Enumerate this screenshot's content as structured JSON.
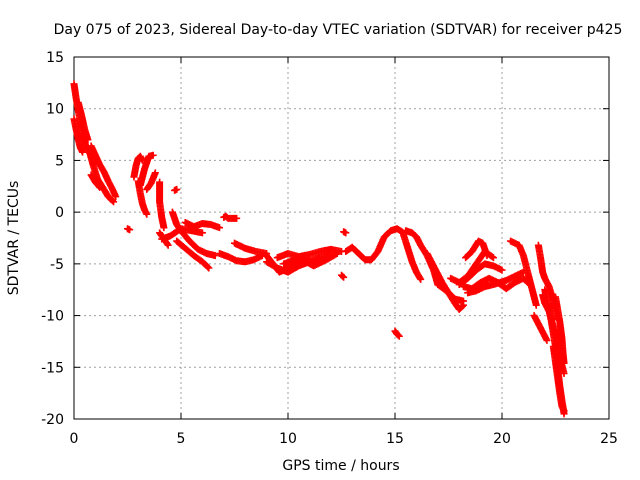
{
  "chart_data": {
    "type": "scatter",
    "title": "Day 075 of 2023, Sidereal Day-to-day VTEC variation (SDTVAR) for receiver p425",
    "xlabel": "GPS time / hours",
    "ylabel": "SDTVAR / TECUs",
    "xlim": [
      0,
      25
    ],
    "ylim": [
      -20,
      15
    ],
    "xticks": [
      0,
      5,
      10,
      15,
      20,
      25
    ],
    "yticks": [
      -20,
      -15,
      -10,
      -5,
      0,
      5,
      10,
      15
    ],
    "grid": true,
    "marker": "+",
    "series": [
      {
        "name": "SDTVAR",
        "color": "#ff0000",
        "segments": [
          [
            [
              0.0,
              12.4
            ],
            [
              0.1,
              11.0
            ],
            [
              0.2,
              9.8
            ],
            [
              0.3,
              8.6
            ],
            [
              0.4,
              7.6
            ],
            [
              0.5,
              6.8
            ],
            [
              0.6,
              6.0
            ]
          ],
          [
            [
              0.0,
              9.0
            ],
            [
              0.1,
              8.0
            ],
            [
              0.2,
              7.0
            ],
            [
              0.3,
              6.2
            ],
            [
              0.4,
              5.8
            ]
          ],
          [
            [
              0.2,
              10.6
            ],
            [
              0.35,
              9.4
            ],
            [
              0.5,
              8.0
            ],
            [
              0.65,
              7.0
            ]
          ],
          [
            [
              0.7,
              6.0
            ],
            [
              0.9,
              4.5
            ],
            [
              1.1,
              3.2
            ],
            [
              1.4,
              2.2
            ],
            [
              1.6,
              1.5
            ],
            [
              1.85,
              1.0
            ]
          ],
          [
            [
              0.8,
              6.4
            ],
            [
              1.0,
              5.5
            ],
            [
              1.2,
              4.6
            ],
            [
              1.4,
              3.9
            ],
            [
              1.6,
              3.0
            ],
            [
              1.8,
              2.2
            ],
            [
              1.95,
              1.5
            ]
          ],
          [
            [
              0.8,
              3.6
            ],
            [
              1.0,
              2.9
            ],
            [
              1.2,
              2.4
            ]
          ],
          [
            [
              2.5,
              -1.6
            ],
            [
              2.6,
              -1.7
            ]
          ],
          [
            [
              2.8,
              3.4
            ],
            [
              2.9,
              4.5
            ],
            [
              3.0,
              5.2
            ],
            [
              3.1,
              5.4
            ],
            [
              3.2,
              5.0
            ]
          ],
          [
            [
              3.0,
              3.0
            ],
            [
              3.1,
              1.8
            ],
            [
              3.2,
              0.8
            ],
            [
              3.3,
              0.2
            ],
            [
              3.4,
              -0.2
            ]
          ],
          [
            [
              3.1,
              2.6
            ],
            [
              3.3,
              4.2
            ],
            [
              3.5,
              5.4
            ],
            [
              3.7,
              5.5
            ]
          ],
          [
            [
              3.4,
              2.2
            ],
            [
              3.6,
              2.8
            ],
            [
              3.8,
              3.8
            ]
          ],
          [
            [
              4.0,
              2.9
            ],
            [
              4.0,
              1.0
            ],
            [
              4.1,
              -0.5
            ],
            [
              4.2,
              -1.5
            ]
          ],
          [
            [
              4.0,
              -2.0
            ],
            [
              4.2,
              -2.6
            ],
            [
              4.4,
              -3.2
            ]
          ],
          [
            [
              4.7,
              2.1
            ],
            [
              4.8,
              2.2
            ]
          ],
          [
            [
              4.1,
              -2.6
            ],
            [
              4.5,
              -2.3
            ],
            [
              5.0,
              -1.6
            ],
            [
              5.5,
              -1.8
            ],
            [
              6.0,
              -2.0
            ]
          ],
          [
            [
              4.6,
              0.0
            ],
            [
              4.8,
              -1.2
            ],
            [
              5.0,
              -1.8
            ],
            [
              5.4,
              -2.8
            ],
            [
              5.8,
              -3.6
            ],
            [
              6.2,
              -4.0
            ],
            [
              6.6,
              -4.2
            ]
          ],
          [
            [
              4.8,
              -2.8
            ],
            [
              5.2,
              -3.5
            ],
            [
              5.6,
              -4.2
            ],
            [
              6.0,
              -4.8
            ],
            [
              6.3,
              -5.4
            ]
          ],
          [
            [
              5.2,
              -1.0
            ],
            [
              5.6,
              -1.4
            ],
            [
              6.0,
              -1.1
            ],
            [
              6.4,
              -1.2
            ],
            [
              6.8,
              -1.5
            ]
          ],
          [
            [
              6.8,
              -4.0
            ],
            [
              7.2,
              -4.3
            ],
            [
              7.6,
              -4.7
            ],
            [
              8.0,
              -4.8
            ],
            [
              8.4,
              -4.6
            ],
            [
              8.8,
              -4.2
            ]
          ],
          [
            [
              7.0,
              -0.5
            ],
            [
              7.1,
              -0.4
            ],
            [
              7.2,
              -0.6
            ],
            [
              7.6,
              -0.6
            ]
          ],
          [
            [
              7.5,
              -3.0
            ],
            [
              8.0,
              -3.5
            ],
            [
              8.5,
              -3.8
            ],
            [
              9.0,
              -4.0
            ]
          ],
          [
            [
              9.0,
              -4.2
            ],
            [
              9.3,
              -5.0
            ],
            [
              9.6,
              -5.8
            ],
            [
              10.0,
              -5.4
            ],
            [
              10.5,
              -5.0
            ],
            [
              11.0,
              -4.6
            ]
          ],
          [
            [
              9.0,
              -4.8
            ],
            [
              9.5,
              -5.4
            ],
            [
              10.0,
              -5.8
            ],
            [
              10.5,
              -5.2
            ],
            [
              11.0,
              -4.8
            ],
            [
              11.5,
              -4.4
            ],
            [
              12.0,
              -4.2
            ]
          ],
          [
            [
              9.5,
              -4.4
            ],
            [
              10.0,
              -4.0
            ],
            [
              10.5,
              -4.3
            ],
            [
              11.0,
              -4.1
            ],
            [
              11.5,
              -3.8
            ],
            [
              12.0,
              -3.6
            ],
            [
              12.5,
              -3.8
            ]
          ],
          [
            [
              9.8,
              -5.0
            ],
            [
              10.2,
              -4.7
            ],
            [
              10.6,
              -4.5
            ],
            [
              11.2,
              -5.2
            ],
            [
              11.8,
              -4.6
            ],
            [
              12.3,
              -4.0
            ]
          ],
          [
            [
              12.6,
              -1.9
            ],
            [
              12.7,
              -2.0
            ]
          ],
          [
            [
              12.5,
              -6.1
            ],
            [
              12.6,
              -6.3
            ]
          ],
          [
            [
              12.7,
              -3.8
            ],
            [
              13.0,
              -3.4
            ],
            [
              13.3,
              -4.0
            ],
            [
              13.6,
              -4.6
            ],
            [
              13.9,
              -4.6
            ],
            [
              14.2,
              -3.8
            ],
            [
              14.5,
              -2.4
            ],
            [
              14.8,
              -1.8
            ],
            [
              15.1,
              -1.6
            ],
            [
              15.4,
              -2.0
            ]
          ],
          [
            [
              15.0,
              -11.5
            ],
            [
              15.1,
              -11.8
            ],
            [
              15.2,
              -12.0
            ]
          ],
          [
            [
              15.4,
              -2.2
            ],
            [
              15.6,
              -3.5
            ],
            [
              15.8,
              -4.8
            ],
            [
              16.0,
              -5.8
            ],
            [
              16.2,
              -6.5
            ]
          ],
          [
            [
              15.5,
              -1.8
            ],
            [
              15.8,
              -2.0
            ],
            [
              16.0,
              -2.4
            ],
            [
              16.2,
              -3.2
            ],
            [
              16.5,
              -4.2
            ],
            [
              16.8,
              -5.6
            ],
            [
              17.0,
              -7.0
            ]
          ],
          [
            [
              16.5,
              -4.0
            ],
            [
              16.8,
              -5.2
            ],
            [
              17.2,
              -6.8
            ],
            [
              17.5,
              -7.8
            ],
            [
              17.8,
              -8.8
            ],
            [
              18.0,
              -9.4
            ],
            [
              18.2,
              -9.0
            ]
          ],
          [
            [
              17.0,
              -7.0
            ],
            [
              17.4,
              -7.6
            ],
            [
              17.8,
              -8.4
            ],
            [
              18.2,
              -8.6
            ]
          ],
          [
            [
              18.0,
              -7.0
            ],
            [
              18.4,
              -6.4
            ],
            [
              18.8,
              -5.6
            ],
            [
              19.2,
              -5.0
            ],
            [
              19.6,
              -5.2
            ],
            [
              20.0,
              -5.6
            ]
          ],
          [
            [
              18.3,
              -4.4
            ],
            [
              18.6,
              -3.8
            ],
            [
              18.9,
              -2.8
            ],
            [
              19.1,
              -3.0
            ],
            [
              19.3,
              -4.2
            ]
          ],
          [
            [
              18.2,
              -7.2
            ],
            [
              18.6,
              -7.4
            ],
            [
              19.0,
              -6.8
            ],
            [
              19.4,
              -6.4
            ],
            [
              19.8,
              -6.8
            ],
            [
              20.2,
              -7.4
            ],
            [
              20.6,
              -6.8
            ],
            [
              21.0,
              -6.4
            ],
            [
              21.2,
              -6.8
            ]
          ],
          [
            [
              18.4,
              -7.8
            ],
            [
              18.8,
              -7.6
            ],
            [
              19.2,
              -7.2
            ],
            [
              19.6,
              -7.0
            ],
            [
              20.2,
              -6.6
            ],
            [
              20.8,
              -6.0
            ],
            [
              21.0,
              -5.8
            ]
          ],
          [
            [
              17.6,
              -6.4
            ],
            [
              18.0,
              -6.8
            ],
            [
              18.4,
              -6.2
            ],
            [
              18.8,
              -5.0
            ],
            [
              19.2,
              -3.8
            ],
            [
              19.6,
              -4.4
            ]
          ],
          [
            [
              20.4,
              -2.8
            ],
            [
              20.8,
              -3.2
            ],
            [
              21.0,
              -4.2
            ],
            [
              21.2,
              -5.8
            ],
            [
              21.4,
              -7.4
            ],
            [
              21.6,
              -9.0
            ]
          ],
          [
            [
              21.5,
              -10.0
            ],
            [
              21.7,
              -10.8
            ],
            [
              21.9,
              -11.6
            ],
            [
              22.1,
              -12.4
            ]
          ],
          [
            [
              21.7,
              -3.2
            ],
            [
              21.8,
              -4.4
            ],
            [
              21.9,
              -5.8
            ],
            [
              22.0,
              -6.4
            ],
            [
              22.2,
              -7.2
            ],
            [
              22.4,
              -8.6
            ],
            [
              22.6,
              -10.4
            ]
          ],
          [
            [
              21.9,
              -8.0
            ],
            [
              22.0,
              -8.8
            ],
            [
              22.2,
              -9.6
            ],
            [
              22.5,
              -11.8
            ],
            [
              22.7,
              -14.0
            ],
            [
              22.9,
              -15.6
            ]
          ],
          [
            [
              22.0,
              -7.5
            ],
            [
              22.3,
              -10.5
            ],
            [
              22.5,
              -13.0
            ],
            [
              22.6,
              -15.0
            ],
            [
              22.7,
              -16.8
            ],
            [
              22.8,
              -18.2
            ],
            [
              22.9,
              -19.5
            ]
          ],
          [
            [
              22.4,
              -13.0
            ],
            [
              22.5,
              -14.5
            ],
            [
              22.6,
              -16.0
            ],
            [
              22.7,
              -17.5
            ],
            [
              22.8,
              -18.8
            ],
            [
              22.9,
              -19.2
            ]
          ],
          [
            [
              22.5,
              -8.2
            ],
            [
              22.6,
              -9.4
            ],
            [
              22.7,
              -10.6
            ],
            [
              22.8,
              -12.2
            ],
            [
              22.85,
              -13.6
            ],
            [
              22.9,
              -14.6
            ]
          ]
        ]
      }
    ]
  }
}
